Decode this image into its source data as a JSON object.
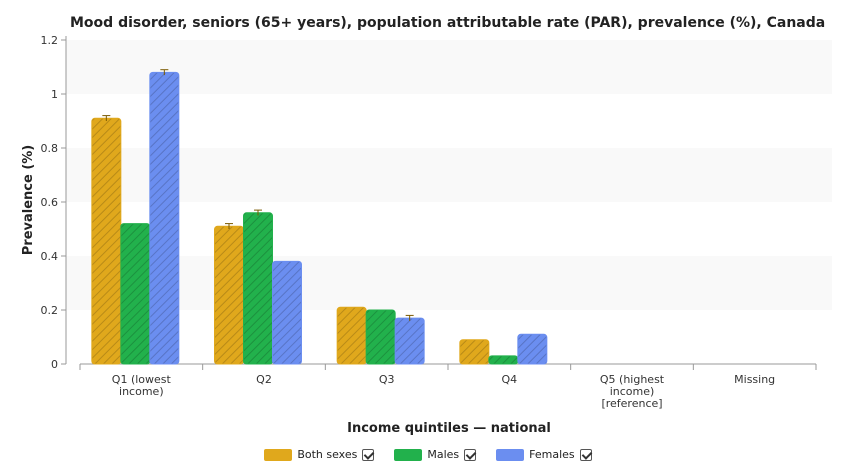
{
  "chart_data": {
    "type": "bar",
    "title": "Mood disorder, seniors (65+ years), population attributable rate (PAR), prevalence (%), Canada",
    "xlabel": "Income quintiles — national",
    "ylabel": "Prevalence (%)",
    "ylim": [
      0,
      1.2
    ],
    "yticks": [
      "0",
      "0.2",
      "0.4",
      "0.6",
      "0.8",
      "1",
      "1.2"
    ],
    "categories": [
      [
        "Q1 (lowest",
        "income)"
      ],
      [
        "Q2"
      ],
      [
        "Q3"
      ],
      [
        "Q4"
      ],
      [
        "Q5 (highest",
        "income)",
        "[reference]"
      ],
      [
        "Missing"
      ]
    ],
    "series": [
      {
        "name": "Both sexes",
        "color": "#e0a81c",
        "values": [
          0.91,
          0.51,
          0.21,
          0.09,
          null,
          null
        ],
        "errors": [
          0.01,
          0.01,
          null,
          null,
          null,
          null
        ]
      },
      {
        "name": "Males",
        "color": "#22b14c",
        "values": [
          0.52,
          0.56,
          0.2,
          0.03,
          null,
          null
        ],
        "errors": [
          null,
          0.01,
          null,
          null,
          null,
          null
        ]
      },
      {
        "name": "Females",
        "color": "#6b8ef0",
        "values": [
          1.08,
          0.38,
          0.17,
          0.11,
          null,
          null
        ],
        "errors": [
          0.01,
          null,
          0.01,
          null,
          null,
          null
        ]
      }
    ],
    "grid": true,
    "legend_position": "bottom"
  }
}
